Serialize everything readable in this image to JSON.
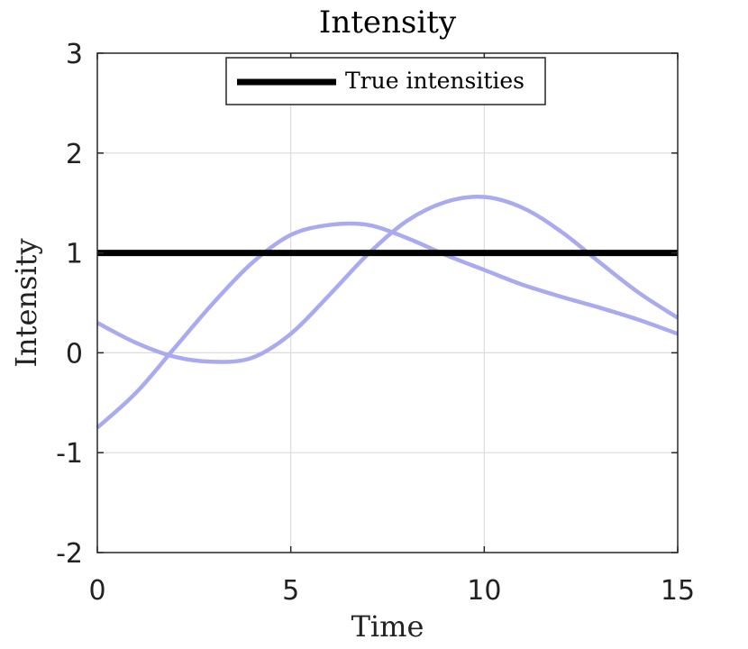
{
  "chart_data": {
    "type": "line",
    "title": "Intensity",
    "xlabel": "Time",
    "ylabel": "Intensity",
    "xlim": [
      0,
      15
    ],
    "ylim": [
      -2,
      3
    ],
    "xticks": [
      0,
      5,
      10,
      15
    ],
    "yticks": [
      -2,
      -1,
      0,
      1,
      2,
      3
    ],
    "grid": true,
    "legend_position": "top-center",
    "legend": [
      {
        "label": "True intensities",
        "color": "#000000"
      }
    ],
    "series": [
      {
        "name": "True intensities",
        "color": "#000000",
        "x": [
          0,
          15
        ],
        "y": [
          1,
          1
        ]
      },
      {
        "color": "#aaaaf0",
        "x": [
          0,
          1,
          2,
          3,
          4,
          5,
          6,
          7,
          8,
          9,
          10,
          11,
          12,
          13,
          14,
          15
        ],
        "y": [
          0.3,
          0.1,
          -0.04,
          -0.09,
          -0.05,
          0.19,
          0.58,
          0.99,
          1.32,
          1.51,
          1.56,
          1.45,
          1.21,
          0.9,
          0.6,
          0.35
        ]
      },
      {
        "color": "#aaaaf0",
        "x": [
          0,
          1,
          2,
          3,
          4,
          5,
          6,
          7,
          8,
          9,
          10,
          11,
          12,
          13,
          14,
          15
        ],
        "y": [
          -0.75,
          -0.4,
          0.05,
          0.5,
          0.9,
          1.18,
          1.28,
          1.28,
          1.15,
          0.98,
          0.83,
          0.68,
          0.56,
          0.45,
          0.33,
          0.19
        ]
      }
    ]
  }
}
